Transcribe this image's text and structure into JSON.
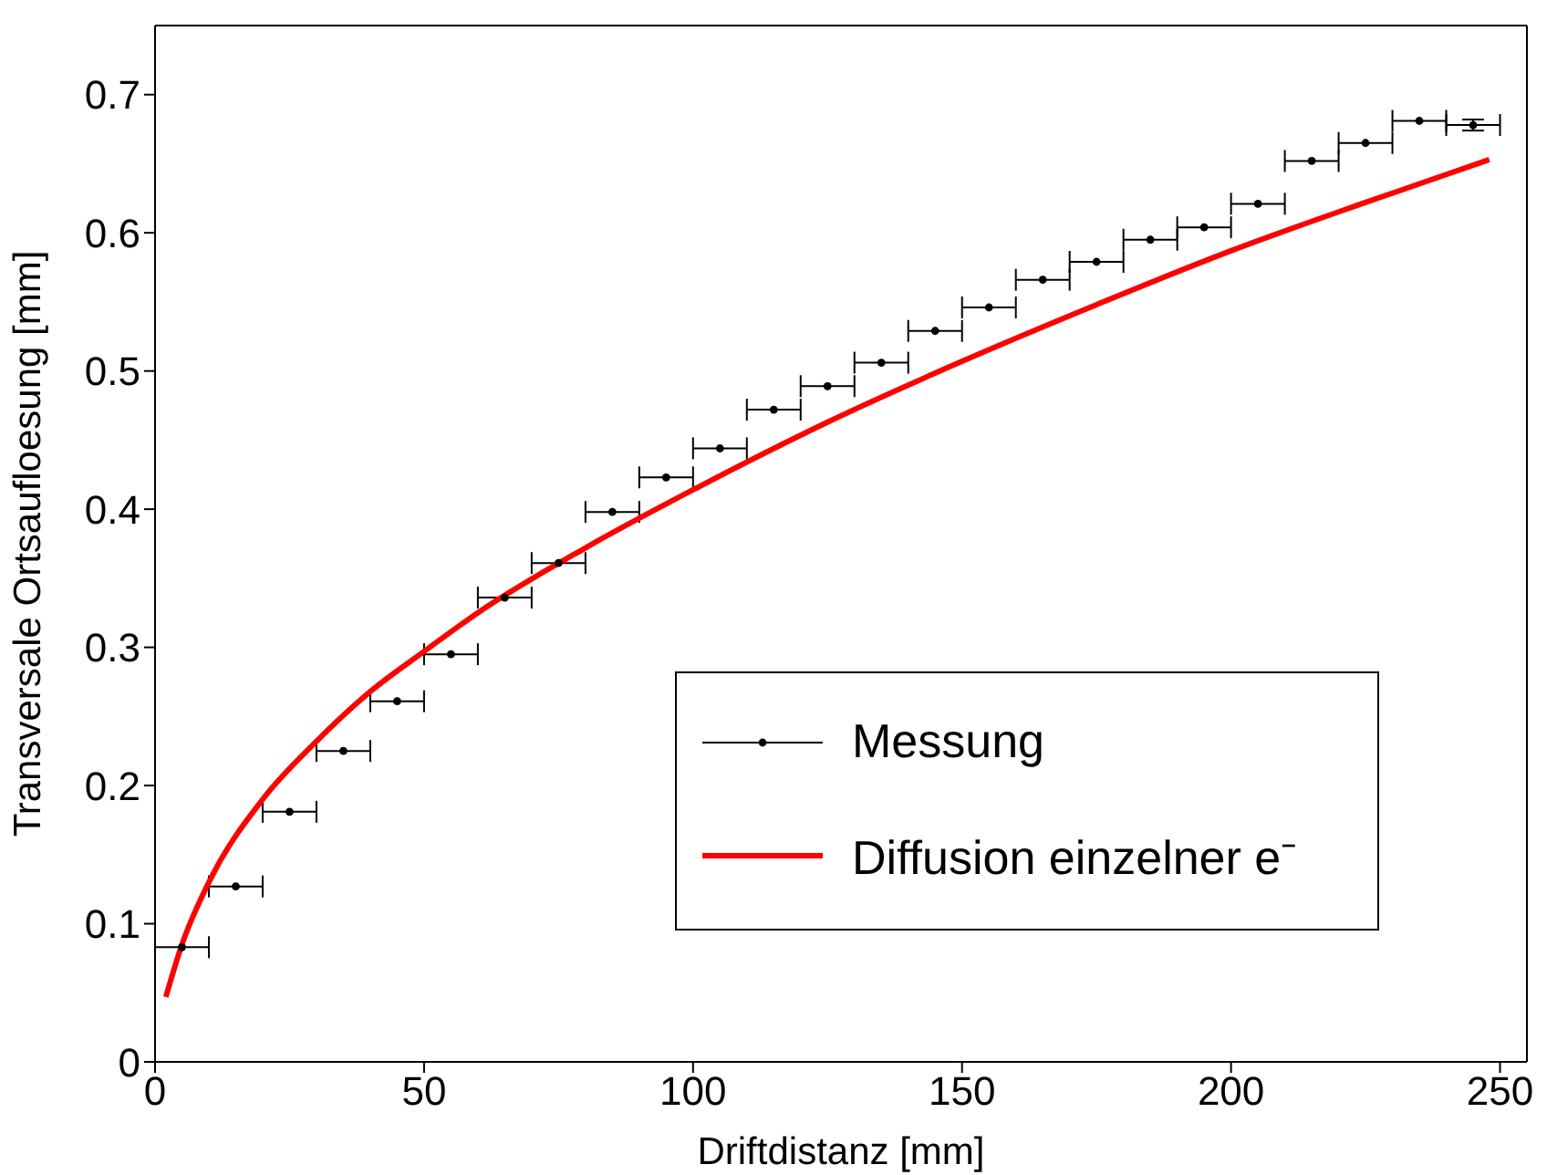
{
  "chart_data": {
    "type": "scatter",
    "xlabel": "Driftdistanz [mm]",
    "ylabel": "Transversale Ortsaufloesung [mm]",
    "xlim": [
      0,
      255
    ],
    "ylim": [
      0,
      0.75
    ],
    "xticks": [
      0,
      50,
      100,
      150,
      200,
      250
    ],
    "yticks": [
      0,
      0.1,
      0.2,
      0.3,
      0.4,
      0.5,
      0.6,
      0.7
    ],
    "grid": false,
    "legend": "bottom right",
    "series": [
      {
        "name": "Messung",
        "color": "#000000",
        "marker": "circle",
        "x": [
          5,
          15,
          25,
          35,
          45,
          55,
          65,
          75,
          85,
          95,
          105,
          115,
          125,
          135,
          145,
          155,
          165,
          175,
          185,
          195,
          205,
          215,
          225,
          235,
          245
        ],
        "values": [
          0.083,
          0.127,
          0.181,
          0.225,
          0.261,
          0.295,
          0.336,
          0.361,
          0.398,
          0.423,
          0.444,
          0.472,
          0.489,
          0.506,
          0.529,
          0.546,
          0.566,
          0.579,
          0.595,
          0.604,
          0.621,
          0.652,
          0.665,
          0.681,
          0.678
        ],
        "xerrors": [
          5,
          5,
          5,
          5,
          5,
          5,
          5,
          5,
          5,
          5,
          5,
          5,
          5,
          5,
          5,
          5,
          5,
          5,
          5,
          5,
          5,
          5,
          5,
          5,
          5
        ],
        "errors": [
          null,
          null,
          null,
          null,
          null,
          null,
          null,
          null,
          null,
          null,
          null,
          null,
          null,
          null,
          null,
          null,
          null,
          null,
          null,
          null,
          null,
          null,
          null,
          null,
          0.004
        ]
      },
      {
        "name": "Diffusion einzelner e⁻",
        "type": "line",
        "color": "#ff0000",
        "marker": "none",
        "x": [
          2,
          5,
          10,
          20,
          30,
          40,
          50,
          60,
          80,
          100,
          125,
          150,
          175,
          200,
          225,
          248
        ],
        "values": [
          0.047,
          0.085,
          0.13,
          0.19,
          0.232,
          0.268,
          0.297,
          0.325,
          0.372,
          0.414,
          0.463,
          0.507,
          0.548,
          0.587,
          0.622,
          0.653
        ]
      }
    ]
  }
}
